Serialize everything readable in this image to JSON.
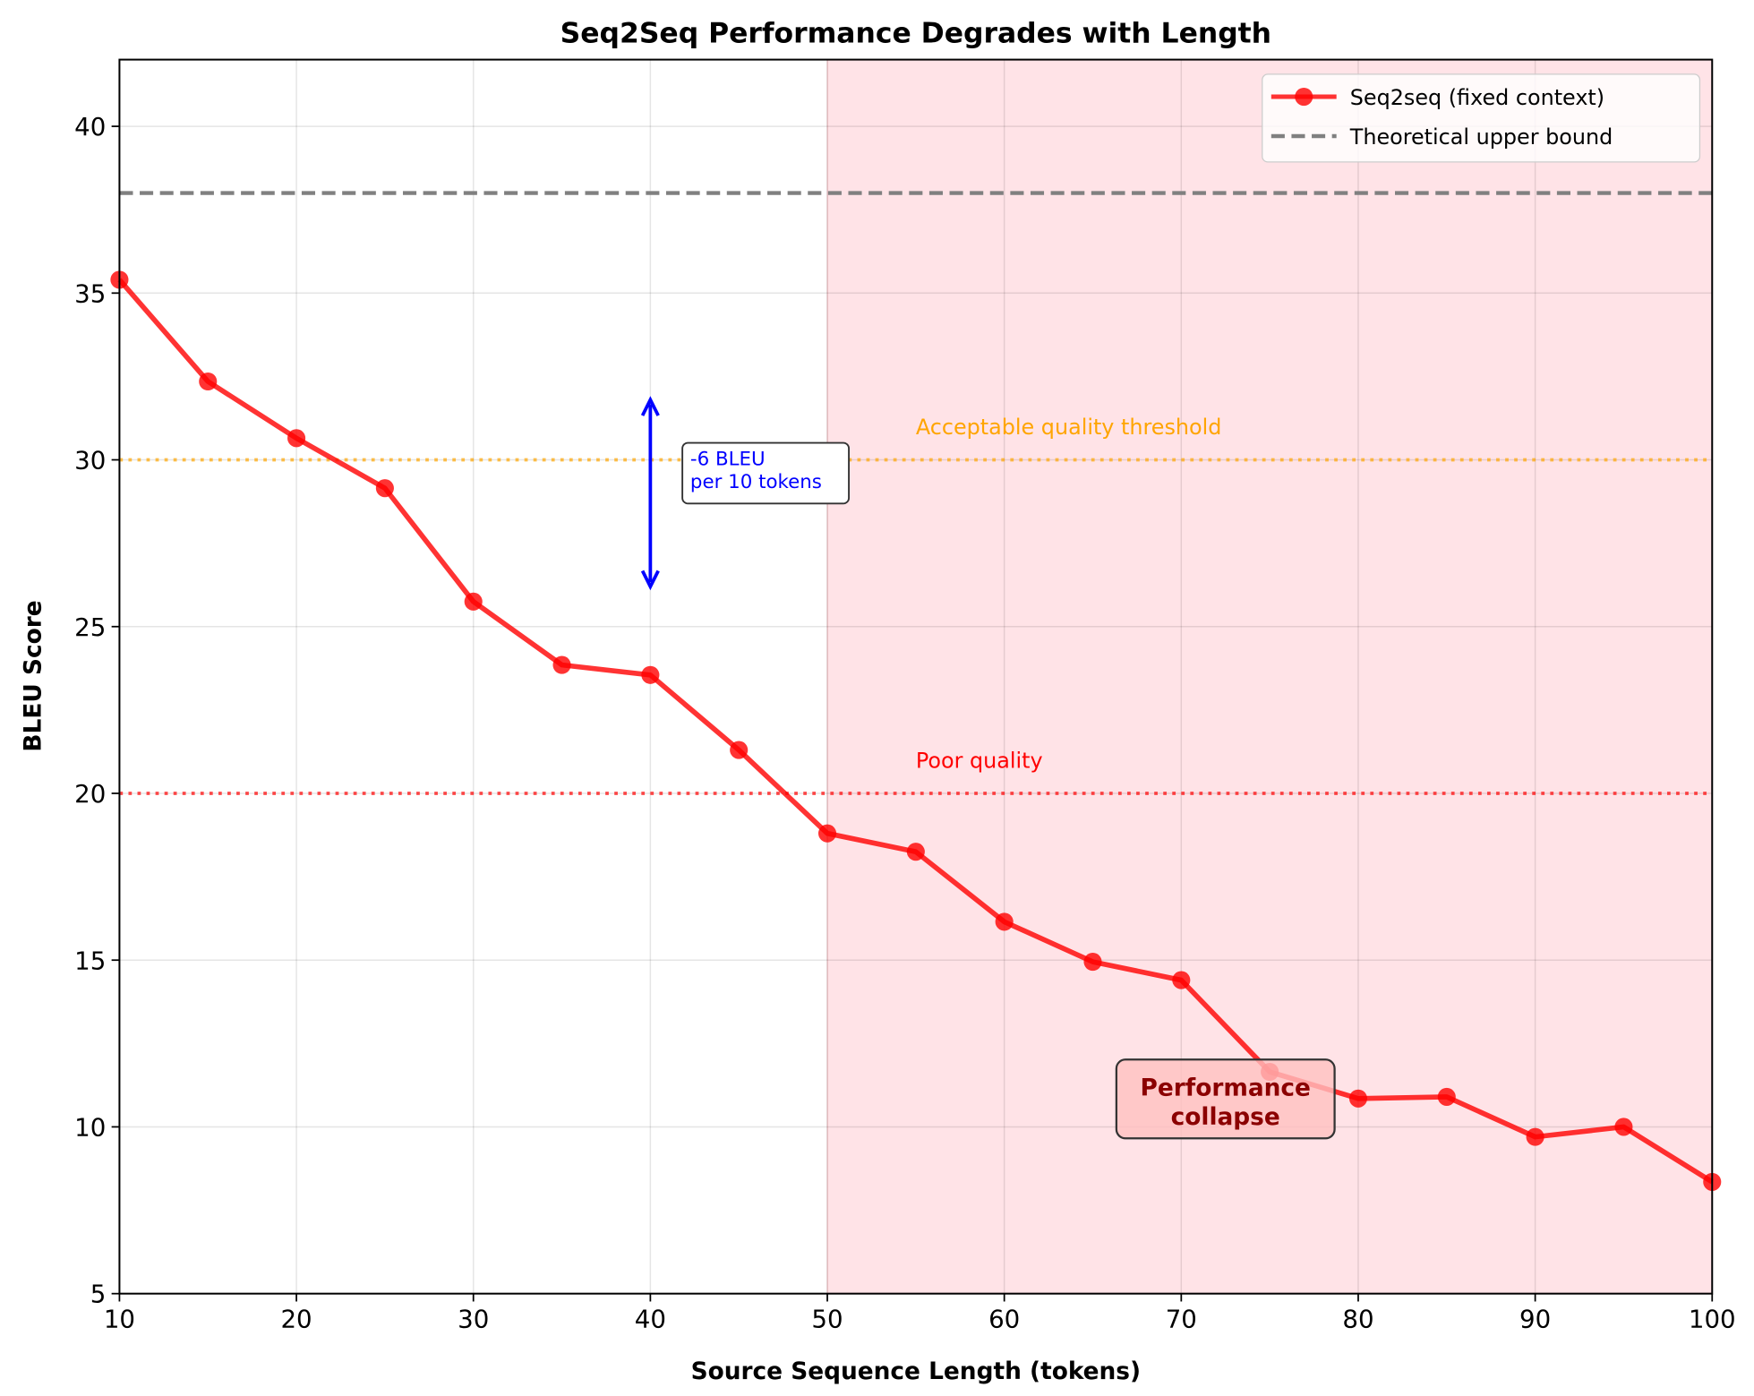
{
  "chart_data": {
    "type": "line",
    "title": "Seq2Seq Performance Degrades with Length",
    "xlabel": "Source Sequence Length (tokens)",
    "ylabel": "BLEU Score",
    "xlim": [
      10,
      100
    ],
    "ylim": [
      5,
      42
    ],
    "xticks": [
      10,
      20,
      30,
      40,
      50,
      60,
      70,
      80,
      90,
      100
    ],
    "yticks": [
      5,
      10,
      15,
      20,
      25,
      30,
      35,
      40
    ],
    "grid": true,
    "legend_position": "top-right",
    "series": [
      {
        "name": "Seq2seq (fixed context)",
        "color": "#ff0000",
        "x": [
          10,
          15,
          20,
          25,
          30,
          35,
          40,
          45,
          50,
          55,
          60,
          65,
          70,
          75,
          80,
          85,
          90,
          95,
          100
        ],
        "y": [
          35.4,
          32.35,
          30.65,
          29.15,
          25.75,
          23.85,
          23.55,
          21.3,
          18.8,
          18.25,
          16.15,
          14.95,
          14.4,
          11.65,
          10.85,
          10.9,
          9.7,
          10.0,
          8.35
        ]
      }
    ],
    "hlines": [
      {
        "name": "Theoretical upper bound",
        "y": 38,
        "color": "#808080",
        "style": "dashed",
        "in_legend": true
      },
      {
        "name": "Acceptable quality threshold",
        "y": 30,
        "color": "#ffa500",
        "style": "dotted",
        "label": "Acceptable quality threshold",
        "label_x": 55,
        "label_y": 31
      },
      {
        "name": "Poor quality",
        "y": 20,
        "color": "#ff0000",
        "style": "dotted",
        "label": "Poor quality",
        "label_x": 55,
        "label_y": 21
      }
    ],
    "shaded_region": {
      "x": [
        50,
        100
      ],
      "color": "#ffb6c1"
    },
    "annotations": [
      {
        "type": "double-arrow",
        "x": 40,
        "y_from": 26.2,
        "y_to": 31.8,
        "color": "#0000ff"
      },
      {
        "type": "textbox",
        "lines": [
          "-6 BLEU",
          "per 10 tokens"
        ],
        "x": 42,
        "y": 29.6,
        "color": "#0000ff"
      },
      {
        "type": "textbox",
        "lines": [
          "Performance",
          "collapse"
        ],
        "x": 72.5,
        "y": 10.5,
        "color": "#8b0000",
        "bg": "#ffc0c0"
      }
    ]
  }
}
